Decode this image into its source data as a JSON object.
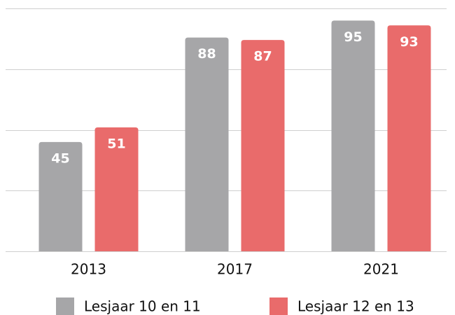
{
  "chart_data": {
    "type": "bar",
    "categories": [
      "2013",
      "2017",
      "2021"
    ],
    "series": [
      {
        "name": "Lesjaar 10 en 11",
        "color": "#a6a6a8",
        "values": [
          45,
          88,
          95
        ]
      },
      {
        "name": "Lesjaar 12 en 13",
        "color": "#e96b6b",
        "values": [
          51,
          87,
          93
        ]
      }
    ],
    "ylim": [
      0,
      100
    ],
    "yticks": [
      0,
      25,
      50,
      75,
      100
    ],
    "grid": true,
    "legend": "bottom"
  }
}
